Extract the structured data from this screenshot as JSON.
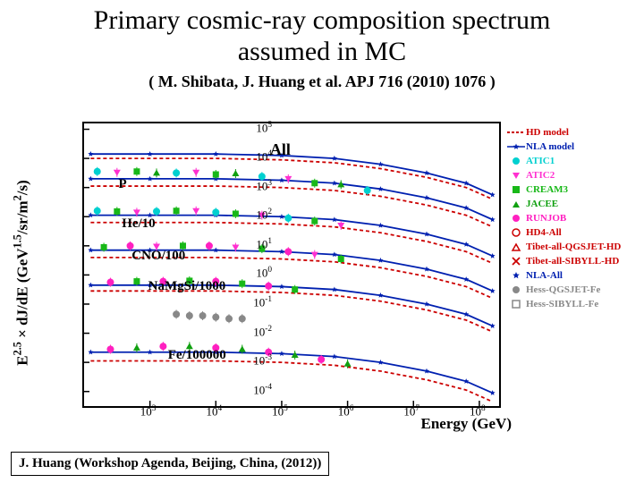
{
  "title_line1": "Primary cosmic-ray composition spectrum",
  "title_line2": "assumed in MC",
  "reference": "( M. Shibata, J. Huang et al.  APJ 716 (2010) 1076 )",
  "footer": "J. Huang  (Workshop  Agenda,  Beijing,  China, (2012))",
  "chart": {
    "type": "scatter-log-log",
    "ylabel": "E^{2.5} × dJ/dE (GeV^{1.5}/sr/m^2/s)",
    "xlabel": "Energy (GeV)",
    "background_color": "#ffffff",
    "border_color": "#000000",
    "xlim_log10": [
      2,
      8.3
    ],
    "ylim_log10": [
      -4.5,
      5.2
    ],
    "xtick_exp": [
      3,
      4,
      5,
      6,
      7,
      8
    ],
    "ytick_exp": [
      -4,
      -3,
      -2,
      -1,
      0,
      1,
      2,
      3,
      4,
      5
    ],
    "series_labels": [
      {
        "text": "All",
        "x_log": 4.85,
        "y_log": 4.3,
        "bold": true,
        "size": 18
      },
      {
        "text": "P",
        "x_log": 2.55,
        "y_log": 3.05
      },
      {
        "text": "He/10",
        "x_log": 2.6,
        "y_log": 1.7
      },
      {
        "text": "CNO/100",
        "x_log": 2.75,
        "y_log": 0.6
      },
      {
        "text": "NaMgSi/1000",
        "x_log": 3.0,
        "y_log": -0.45
      },
      {
        "text": "Fe/100000",
        "x_log": 3.3,
        "y_log": -2.8
      }
    ],
    "curves": {
      "HD_model": {
        "color": "#cc0000",
        "dash": "4,3",
        "width": 1.8,
        "bands": [
          4.0,
          3.05,
          1.8,
          0.6,
          -0.55,
          -2.95
        ]
      },
      "NLA_model": {
        "color": "#0020b0",
        "star": true,
        "width": 1.8,
        "bands": [
          4.15,
          3.3,
          2.05,
          0.85,
          -0.35,
          -2.65
        ]
      }
    },
    "data_colors": {
      "ATIC1": "#00d0d0",
      "ATIC2": "#ff30d0",
      "CREAM3": "#18b818",
      "JACEE": "#10a010",
      "RUNJOB": "#ff20c0",
      "HD4-All": "#cc0000",
      "Tibet-QGS": "#cc0000",
      "Tibet-SIB": "#cc0000",
      "NLA-All": "#0020b0",
      "Hess-QGS": "#888888",
      "Hess-SIB": "#888888"
    },
    "data_points": {
      "P": {
        "x": [
          2.2,
          2.5,
          2.8,
          3.1,
          3.4,
          3.7,
          4.0,
          4.3,
          4.7,
          5.1,
          5.5,
          5.9,
          6.3
        ],
        "y": [
          3.55,
          3.52,
          3.55,
          3.5,
          3.5,
          3.52,
          3.45,
          3.48,
          3.38,
          3.3,
          3.15,
          3.1,
          2.9
        ]
      },
      "He": {
        "x": [
          2.2,
          2.5,
          2.8,
          3.1,
          3.4,
          3.7,
          4.0,
          4.3,
          4.7,
          5.1,
          5.5,
          5.9
        ],
        "y": [
          2.2,
          2.18,
          2.15,
          2.18,
          2.2,
          2.2,
          2.15,
          2.1,
          2.05,
          1.95,
          1.85,
          1.7
        ]
      },
      "CNO": {
        "x": [
          2.3,
          2.7,
          3.1,
          3.5,
          3.9,
          4.3,
          4.7,
          5.1,
          5.5,
          5.9
        ],
        "y": [
          0.95,
          1.0,
          0.98,
          1.0,
          1.0,
          0.95,
          0.9,
          0.8,
          0.7,
          0.55
        ]
      },
      "NaMgSi": {
        "x": [
          2.4,
          2.8,
          3.2,
          3.6,
          4.0,
          4.4,
          4.8,
          5.2
        ],
        "y": [
          -0.25,
          -0.22,
          -0.22,
          -0.2,
          -0.22,
          -0.3,
          -0.38,
          -0.5
        ]
      },
      "Fe": {
        "x": [
          2.4,
          2.8,
          3.2,
          3.6,
          4.0,
          4.4,
          4.8,
          5.2,
          5.6,
          6.0
        ],
        "y": [
          -2.55,
          -2.5,
          -2.45,
          -2.45,
          -2.5,
          -2.55,
          -2.65,
          -2.75,
          -2.9,
          -3.05
        ]
      },
      "grey": {
        "x": [
          3.4,
          3.6,
          3.8,
          4.0,
          4.2,
          4.4
        ],
        "y": [
          -1.35,
          -1.4,
          -1.4,
          -1.45,
          -1.5,
          -1.5
        ]
      }
    },
    "legend": [
      {
        "label": "HD model",
        "color": "#cc0000",
        "shape": "line-dash"
      },
      {
        "label": "NLA model",
        "color": "#0020b0",
        "shape": "line-star"
      },
      {
        "label": "ATIC1",
        "color": "#00d0d0",
        "shape": "circle-fill"
      },
      {
        "label": "ATIC2",
        "color": "#ff30d0",
        "shape": "tri-down"
      },
      {
        "label": "CREAM3",
        "color": "#18b818",
        "shape": "square-fill"
      },
      {
        "label": "JACEE",
        "color": "#10a010",
        "shape": "tri-up"
      },
      {
        "label": "RUNJOB",
        "color": "#ff20c0",
        "shape": "circle-fill"
      },
      {
        "label": "HD4-All",
        "color": "#cc0000",
        "shape": "circle-open"
      },
      {
        "label": "Tibet-all-QGSJET-HD",
        "color": "#cc0000",
        "shape": "tri-up-open"
      },
      {
        "label": "Tibet-all-SIBYLL-HD",
        "color": "#cc0000",
        "shape": "x"
      },
      {
        "label": "NLA-All",
        "color": "#0020b0",
        "shape": "star"
      },
      {
        "label": "Hess-QGSJET-Fe",
        "color": "#888888",
        "shape": "circle-fill"
      },
      {
        "label": "Hess-SIBYLL-Fe",
        "color": "#888888",
        "shape": "square-open"
      }
    ]
  }
}
